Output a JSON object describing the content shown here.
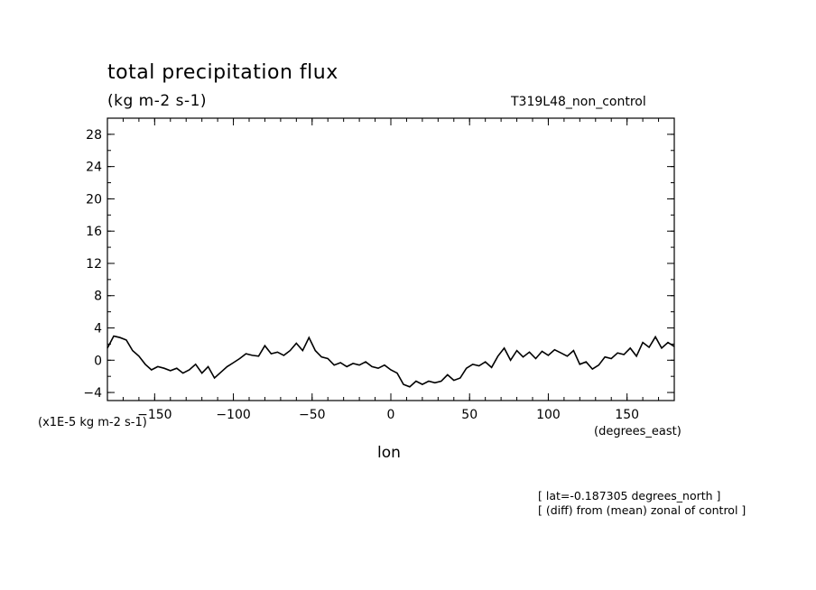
{
  "chart_data": {
    "type": "line",
    "title": "total precipitation flux",
    "units": "(kg m-2 s-1)",
    "run_label": "T319L48_non_control",
    "xlabel": "lon",
    "x_units": "(degrees_east)",
    "y_scale_label": "(x1E-5 kg m-2 s-1)",
    "annotations": [
      "[ lat=-0.187305 degrees_north ]",
      "[ (diff) from (mean) zonal of control ]"
    ],
    "xlim": [
      -180,
      180
    ],
    "ylim": [
      -5,
      30
    ],
    "x_ticks": [
      -150,
      -100,
      -50,
      0,
      50,
      100,
      150
    ],
    "x_tick_labels": [
      "−150",
      "−100",
      "−50",
      "0",
      "50",
      "100",
      "150"
    ],
    "y_ticks": [
      -4,
      0,
      4,
      8,
      12,
      16,
      20,
      24,
      28
    ],
    "y_tick_labels": [
      "−4",
      "0",
      "4",
      "8",
      "12",
      "16",
      "20",
      "24",
      "28"
    ],
    "grid": false,
    "series": [
      {
        "x": [
          -180,
          -176,
          -172,
          -168,
          -164,
          -160,
          -156,
          -152,
          -148,
          -144,
          -140,
          -136,
          -132,
          -128,
          -124,
          -120,
          -116,
          -112,
          -108,
          -104,
          -100,
          -96,
          -92,
          -88,
          -84,
          -80,
          -76,
          -72,
          -68,
          -64,
          -60,
          -56,
          -52,
          -50,
          -48,
          -44,
          -40,
          -36,
          -32,
          -28,
          -24,
          -20,
          -16,
          -12,
          -8,
          -4,
          0,
          4,
          8,
          12,
          16,
          20,
          24,
          28,
          32,
          36,
          40,
          44,
          48,
          52,
          56,
          60,
          64,
          68,
          72,
          76,
          80,
          84,
          88,
          92,
          96,
          100,
          104,
          108,
          112,
          116,
          120,
          124,
          128,
          132,
          136,
          140,
          144,
          148,
          152,
          156,
          160,
          164,
          168,
          172,
          176,
          180
        ],
        "y": [
          1.5,
          3.0,
          2.8,
          2.5,
          1.2,
          0.5,
          -0.5,
          -1.2,
          -0.8,
          -1.0,
          -1.3,
          -1.0,
          -1.6,
          -1.2,
          -0.5,
          -1.6,
          -0.8,
          -2.2,
          -1.5,
          -0.8,
          -0.3,
          0.2,
          0.8,
          0.6,
          0.5,
          1.8,
          0.8,
          1.0,
          0.6,
          1.2,
          2.1,
          1.2,
          2.8,
          2.0,
          1.2,
          0.4,
          0.2,
          -0.6,
          -0.3,
          -0.8,
          -0.4,
          -0.6,
          -0.2,
          -0.8,
          -1.0,
          -0.6,
          -1.2,
          -1.6,
          -3.0,
          -3.3,
          -2.6,
          -3.0,
          -2.6,
          -2.8,
          -2.6,
          -1.8,
          -2.5,
          -2.2,
          -1.0,
          -0.5,
          -0.7,
          -0.2,
          -0.9,
          0.5,
          1.5,
          0.0,
          1.2,
          0.4,
          1.0,
          0.2,
          1.1,
          0.6,
          1.3,
          0.9,
          0.5,
          1.2,
          -0.5,
          -0.2,
          -1.1,
          -0.6,
          0.4,
          0.2,
          0.9,
          0.7,
          1.5,
          0.5,
          2.2,
          1.6,
          2.9,
          1.5,
          2.2,
          1.7
        ]
      }
    ]
  }
}
